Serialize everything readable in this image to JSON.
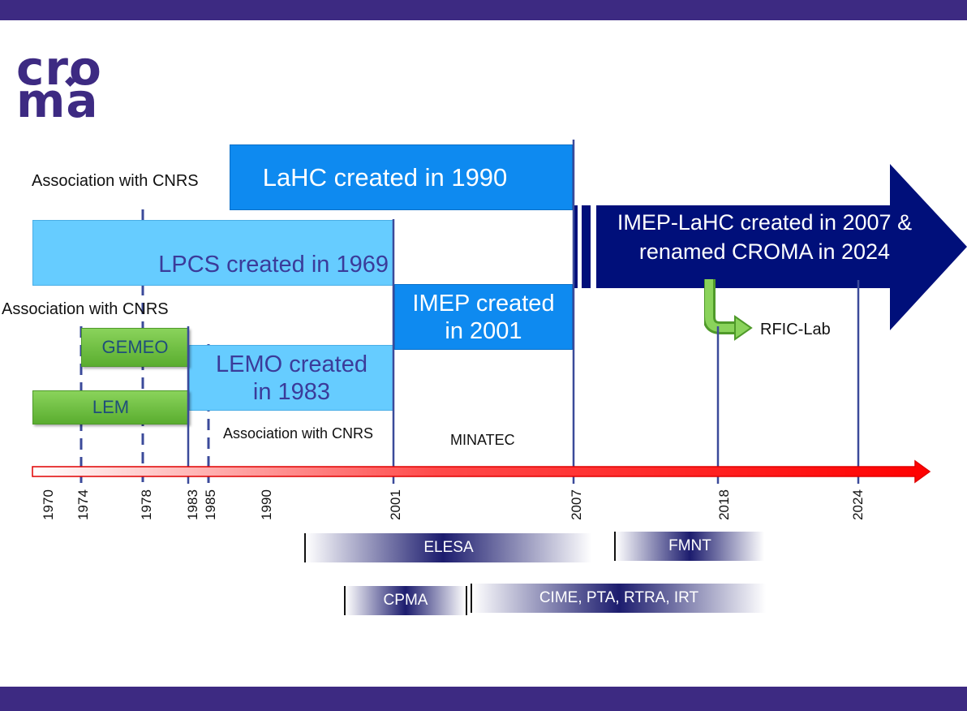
{
  "logo": {
    "line1": "cro",
    "line2": "ma",
    "text": "croma"
  },
  "boxes": {
    "lahc": "LaHC created in 1990",
    "lpcs": "LPCS created in 1969",
    "imep_1": "IMEP created",
    "imep_2": "in 2001",
    "gemeo": "GEMEO",
    "lemo_1": "LEMO created",
    "lemo_2": "in 1983",
    "lem": "LEM",
    "croma_1": "IMEP-LaHC created in 2007 &",
    "croma_2": "renamed CROMA in 2024"
  },
  "notes": {
    "cnrs_top": "Association with CNRS",
    "cnrs_mid": "Association with CNRS",
    "cnrs_low": "Association with CNRS",
    "minatec": "MINATEC",
    "rfic": "RFIC-Lab"
  },
  "timeline": {
    "years": [
      "1970",
      "1974",
      "1978",
      "1983",
      "1985",
      "1990",
      "2001",
      "2007",
      "2018",
      "2024"
    ]
  },
  "projects": {
    "elesa": "ELESA",
    "fmnt": "FMNT",
    "cpma": "CPMA",
    "cime": "CIME, PTA, RTRA, IRT"
  },
  "colors": {
    "band": "#3d2a82",
    "dark_blue_box": "#0e8af0",
    "light_blue_box": "#66ccff",
    "green_box": "#6cc040",
    "navy_arrow": "#000f7a",
    "timeline_red": "#ff0000"
  }
}
